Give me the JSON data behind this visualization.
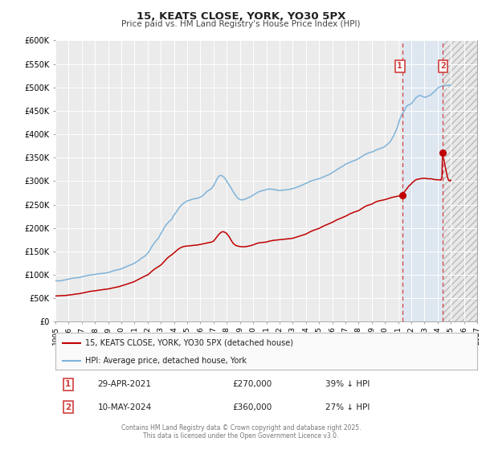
{
  "title": "15, KEATS CLOSE, YORK, YO30 5PX",
  "subtitle": "Price paid vs. HM Land Registry's House Price Index (HPI)",
  "ylim": [
    0,
    600000
  ],
  "xlim": [
    1995,
    2027
  ],
  "yticks": [
    0,
    50000,
    100000,
    150000,
    200000,
    250000,
    300000,
    350000,
    400000,
    450000,
    500000,
    550000,
    600000
  ],
  "ytick_labels": [
    "£0",
    "£50K",
    "£100K",
    "£150K",
    "£200K",
    "£250K",
    "£300K",
    "£350K",
    "£400K",
    "£450K",
    "£500K",
    "£550K",
    "£600K"
  ],
  "xticks": [
    1995,
    1996,
    1997,
    1998,
    1999,
    2000,
    2001,
    2002,
    2003,
    2004,
    2005,
    2006,
    2007,
    2008,
    2009,
    2010,
    2011,
    2012,
    2013,
    2014,
    2015,
    2016,
    2017,
    2018,
    2019,
    2020,
    2021,
    2022,
    2023,
    2024,
    2025,
    2026,
    2027
  ],
  "background_color": "#ffffff",
  "plot_bg_color": "#ebebeb",
  "grid_color": "#ffffff",
  "hpi_line_color": "#7fb3d9",
  "price_line_color": "#c00000",
  "shade_color": "#dce6f1",
  "shade_alpha": 0.85,
  "hatch_color": "#cccccc",
  "vline_color": "#d04040",
  "marker1_x": 2021.33,
  "marker1_y": 270000,
  "marker2_x": 2024.37,
  "marker2_y": 360000,
  "marker1_label": "29-APR-2021",
  "marker1_price": "£270,000",
  "marker1_hpi": "39% ↓ HPI",
  "marker2_label": "10-MAY-2024",
  "marker2_price": "£360,000",
  "marker2_hpi": "27% ↓ HPI",
  "legend_line1": "15, KEATS CLOSE, YORK, YO30 5PX (detached house)",
  "legend_line2": "HPI: Average price, detached house, York",
  "footer": "Contains HM Land Registry data © Crown copyright and database right 2025.\nThis data is licensed under the Open Government Licence v3.0.",
  "hpi_data": [
    [
      1995.0,
      88000
    ],
    [
      1995.08,
      87500
    ],
    [
      1995.17,
      87200
    ],
    [
      1995.25,
      87000
    ],
    [
      1995.33,
      87100
    ],
    [
      1995.42,
      87500
    ],
    [
      1995.5,
      88000
    ],
    [
      1995.58,
      88500
    ],
    [
      1995.67,
      89000
    ],
    [
      1995.75,
      89500
    ],
    [
      1995.83,
      90000
    ],
    [
      1995.92,
      90500
    ],
    [
      1996.0,
      91000
    ],
    [
      1996.17,
      92000
    ],
    [
      1996.33,
      93000
    ],
    [
      1996.5,
      93500
    ],
    [
      1996.67,
      94000
    ],
    [
      1996.83,
      94500
    ],
    [
      1997.0,
      96000
    ],
    [
      1997.17,
      97000
    ],
    [
      1997.33,
      98000
    ],
    [
      1997.5,
      99000
    ],
    [
      1997.67,
      100000
    ],
    [
      1997.83,
      100500
    ],
    [
      1998.0,
      101000
    ],
    [
      1998.17,
      102000
    ],
    [
      1998.33,
      102500
    ],
    [
      1998.5,
      103000
    ],
    [
      1998.67,
      103500
    ],
    [
      1998.83,
      104000
    ],
    [
      1999.0,
      105000
    ],
    [
      1999.17,
      106500
    ],
    [
      1999.33,
      108000
    ],
    [
      1999.5,
      109500
    ],
    [
      1999.67,
      110500
    ],
    [
      1999.83,
      111500
    ],
    [
      2000.0,
      113000
    ],
    [
      2000.17,
      115000
    ],
    [
      2000.33,
      117000
    ],
    [
      2000.5,
      119000
    ],
    [
      2000.67,
      121000
    ],
    [
      2000.83,
      122500
    ],
    [
      2001.0,
      125000
    ],
    [
      2001.17,
      128000
    ],
    [
      2001.33,
      131000
    ],
    [
      2001.5,
      135000
    ],
    [
      2001.67,
      138000
    ],
    [
      2001.83,
      141000
    ],
    [
      2002.0,
      146000
    ],
    [
      2002.17,
      153000
    ],
    [
      2002.33,
      161000
    ],
    [
      2002.5,
      168000
    ],
    [
      2002.67,
      174000
    ],
    [
      2002.83,
      179000
    ],
    [
      2003.0,
      188000
    ],
    [
      2003.17,
      196000
    ],
    [
      2003.33,
      204000
    ],
    [
      2003.5,
      210000
    ],
    [
      2003.67,
      215000
    ],
    [
      2003.83,
      219000
    ],
    [
      2004.0,
      228000
    ],
    [
      2004.17,
      234000
    ],
    [
      2004.33,
      241000
    ],
    [
      2004.5,
      247000
    ],
    [
      2004.67,
      252000
    ],
    [
      2004.83,
      255000
    ],
    [
      2005.0,
      258000
    ],
    [
      2005.17,
      259000
    ],
    [
      2005.33,
      261000
    ],
    [
      2005.5,
      262000
    ],
    [
      2005.67,
      263000
    ],
    [
      2005.83,
      264000
    ],
    [
      2006.0,
      266000
    ],
    [
      2006.17,
      269000
    ],
    [
      2006.33,
      273000
    ],
    [
      2006.5,
      278000
    ],
    [
      2006.67,
      281000
    ],
    [
      2006.83,
      284000
    ],
    [
      2007.0,
      290000
    ],
    [
      2007.08,
      295000
    ],
    [
      2007.17,
      299000
    ],
    [
      2007.25,
      304000
    ],
    [
      2007.33,
      308000
    ],
    [
      2007.42,
      311000
    ],
    [
      2007.5,
      312000
    ],
    [
      2007.58,
      312000
    ],
    [
      2007.67,
      311000
    ],
    [
      2007.75,
      309000
    ],
    [
      2007.83,
      307000
    ],
    [
      2007.92,
      304000
    ],
    [
      2008.0,
      300000
    ],
    [
      2008.08,
      296000
    ],
    [
      2008.17,
      292000
    ],
    [
      2008.25,
      289000
    ],
    [
      2008.33,
      285000
    ],
    [
      2008.42,
      281000
    ],
    [
      2008.5,
      277000
    ],
    [
      2008.58,
      273000
    ],
    [
      2008.67,
      270000
    ],
    [
      2008.75,
      267000
    ],
    [
      2008.83,
      264000
    ],
    [
      2008.92,
      262000
    ],
    [
      2009.0,
      261000
    ],
    [
      2009.08,
      260000
    ],
    [
      2009.17,
      260000
    ],
    [
      2009.25,
      260500
    ],
    [
      2009.33,
      261000
    ],
    [
      2009.42,
      262000
    ],
    [
      2009.5,
      263000
    ],
    [
      2009.67,
      265000
    ],
    [
      2009.83,
      267000
    ],
    [
      2010.0,
      270000
    ],
    [
      2010.17,
      273000
    ],
    [
      2010.33,
      276000
    ],
    [
      2010.5,
      278000
    ],
    [
      2010.67,
      279500
    ],
    [
      2010.83,
      280500
    ],
    [
      2011.0,
      282000
    ],
    [
      2011.17,
      283000
    ],
    [
      2011.33,
      283000
    ],
    [
      2011.5,
      282500
    ],
    [
      2011.67,
      281500
    ],
    [
      2011.83,
      281000
    ],
    [
      2012.0,
      280000
    ],
    [
      2012.17,
      280500
    ],
    [
      2012.33,
      281000
    ],
    [
      2012.5,
      281500
    ],
    [
      2012.67,
      282000
    ],
    [
      2012.83,
      283000
    ],
    [
      2013.0,
      284000
    ],
    [
      2013.17,
      285500
    ],
    [
      2013.33,
      287000
    ],
    [
      2013.5,
      289000
    ],
    [
      2013.67,
      291000
    ],
    [
      2013.83,
      293000
    ],
    [
      2014.0,
      295000
    ],
    [
      2014.17,
      297500
    ],
    [
      2014.33,
      299500
    ],
    [
      2014.5,
      301000
    ],
    [
      2014.67,
      302500
    ],
    [
      2014.83,
      304000
    ],
    [
      2015.0,
      305000
    ],
    [
      2015.17,
      307000
    ],
    [
      2015.33,
      309000
    ],
    [
      2015.5,
      311000
    ],
    [
      2015.67,
      313000
    ],
    [
      2015.83,
      315000
    ],
    [
      2016.0,
      318000
    ],
    [
      2016.17,
      321000
    ],
    [
      2016.33,
      324000
    ],
    [
      2016.5,
      327000
    ],
    [
      2016.67,
      330000
    ],
    [
      2016.83,
      332000
    ],
    [
      2017.0,
      336000
    ],
    [
      2017.17,
      338000
    ],
    [
      2017.33,
      340000
    ],
    [
      2017.5,
      342000
    ],
    [
      2017.67,
      344000
    ],
    [
      2017.83,
      345500
    ],
    [
      2018.0,
      348000
    ],
    [
      2018.17,
      351000
    ],
    [
      2018.33,
      354000
    ],
    [
      2018.5,
      357000
    ],
    [
      2018.67,
      359000
    ],
    [
      2018.83,
      361000
    ],
    [
      2019.0,
      362000
    ],
    [
      2019.17,
      364000
    ],
    [
      2019.33,
      366500
    ],
    [
      2019.5,
      368000
    ],
    [
      2019.67,
      370000
    ],
    [
      2019.83,
      371500
    ],
    [
      2020.0,
      374000
    ],
    [
      2020.08,
      376000
    ],
    [
      2020.17,
      378000
    ],
    [
      2020.25,
      380000
    ],
    [
      2020.33,
      382000
    ],
    [
      2020.42,
      385000
    ],
    [
      2020.5,
      389000
    ],
    [
      2020.58,
      393000
    ],
    [
      2020.67,
      397000
    ],
    [
      2020.75,
      402000
    ],
    [
      2020.83,
      407000
    ],
    [
      2020.92,
      413000
    ],
    [
      2021.0,
      420000
    ],
    [
      2021.08,
      428000
    ],
    [
      2021.17,
      435000
    ],
    [
      2021.25,
      440000
    ],
    [
      2021.33,
      444000
    ],
    [
      2021.42,
      448000
    ],
    [
      2021.5,
      452000
    ],
    [
      2021.58,
      457000
    ],
    [
      2021.67,
      460000
    ],
    [
      2021.75,
      462000
    ],
    [
      2021.83,
      463000
    ],
    [
      2021.92,
      464000
    ],
    [
      2022.0,
      465000
    ],
    [
      2022.08,
      468000
    ],
    [
      2022.17,
      471000
    ],
    [
      2022.25,
      474000
    ],
    [
      2022.33,
      477000
    ],
    [
      2022.42,
      479000
    ],
    [
      2022.5,
      481000
    ],
    [
      2022.58,
      482000
    ],
    [
      2022.67,
      483000
    ],
    [
      2022.75,
      482000
    ],
    [
      2022.83,
      481000
    ],
    [
      2022.92,
      480000
    ],
    [
      2023.0,
      479000
    ],
    [
      2023.08,
      479000
    ],
    [
      2023.17,
      480000
    ],
    [
      2023.25,
      481000
    ],
    [
      2023.33,
      482000
    ],
    [
      2023.42,
      483000
    ],
    [
      2023.5,
      485000
    ],
    [
      2023.58,
      487000
    ],
    [
      2023.67,
      489000
    ],
    [
      2023.75,
      491000
    ],
    [
      2023.83,
      493000
    ],
    [
      2023.92,
      496000
    ],
    [
      2024.0,
      498000
    ],
    [
      2024.08,
      500000
    ],
    [
      2024.17,
      501000
    ],
    [
      2024.25,
      502000
    ],
    [
      2024.33,
      502500
    ],
    [
      2024.37,
      503000
    ],
    [
      2024.5,
      503000
    ],
    [
      2024.58,
      503500
    ],
    [
      2024.67,
      504000
    ],
    [
      2024.75,
      504500
    ],
    [
      2024.83,
      504500
    ],
    [
      2024.92,
      504500
    ],
    [
      2025.0,
      505000
    ]
  ],
  "price_data": [
    [
      1995.0,
      55000
    ],
    [
      1995.17,
      55200
    ],
    [
      1995.33,
      55500
    ],
    [
      1995.5,
      55800
    ],
    [
      1995.67,
      56000
    ],
    [
      1995.83,
      56200
    ],
    [
      1996.0,
      57000
    ],
    [
      1996.17,
      57500
    ],
    [
      1996.33,
      58000
    ],
    [
      1996.5,
      59000
    ],
    [
      1996.67,
      59500
    ],
    [
      1996.83,
      60000
    ],
    [
      1997.0,
      61000
    ],
    [
      1997.17,
      62000
    ],
    [
      1997.33,
      63000
    ],
    [
      1997.5,
      64000
    ],
    [
      1997.67,
      65000
    ],
    [
      1997.83,
      65500
    ],
    [
      1998.0,
      66000
    ],
    [
      1998.17,
      66800
    ],
    [
      1998.33,
      67500
    ],
    [
      1998.5,
      68200
    ],
    [
      1998.67,
      68800
    ],
    [
      1998.83,
      69200
    ],
    [
      1999.0,
      70000
    ],
    [
      1999.17,
      71000
    ],
    [
      1999.33,
      72000
    ],
    [
      1999.5,
      73000
    ],
    [
      1999.67,
      74000
    ],
    [
      1999.83,
      75000
    ],
    [
      2000.0,
      76500
    ],
    [
      2000.17,
      78000
    ],
    [
      2000.33,
      79500
    ],
    [
      2000.5,
      81000
    ],
    [
      2000.67,
      82500
    ],
    [
      2000.83,
      84000
    ],
    [
      2001.0,
      86000
    ],
    [
      2001.17,
      88500
    ],
    [
      2001.33,
      91000
    ],
    [
      2001.5,
      93500
    ],
    [
      2001.67,
      96000
    ],
    [
      2001.83,
      98000
    ],
    [
      2002.0,
      100000
    ],
    [
      2002.17,
      104000
    ],
    [
      2002.33,
      108000
    ],
    [
      2002.5,
      112000
    ],
    [
      2002.67,
      115000
    ],
    [
      2002.83,
      118000
    ],
    [
      2003.0,
      121000
    ],
    [
      2003.17,
      126000
    ],
    [
      2003.33,
      131000
    ],
    [
      2003.5,
      136000
    ],
    [
      2003.67,
      140000
    ],
    [
      2003.83,
      143000
    ],
    [
      2004.0,
      147000
    ],
    [
      2004.17,
      151000
    ],
    [
      2004.33,
      155000
    ],
    [
      2004.5,
      158000
    ],
    [
      2004.67,
      160000
    ],
    [
      2004.83,
      161000
    ],
    [
      2005.0,
      161500
    ],
    [
      2005.17,
      162000
    ],
    [
      2005.33,
      162500
    ],
    [
      2005.5,
      163000
    ],
    [
      2005.67,
      163500
    ],
    [
      2005.83,
      164000
    ],
    [
      2006.0,
      165000
    ],
    [
      2006.17,
      166000
    ],
    [
      2006.33,
      167000
    ],
    [
      2006.5,
      168000
    ],
    [
      2006.67,
      169000
    ],
    [
      2006.83,
      170000
    ],
    [
      2007.0,
      172000
    ],
    [
      2007.08,
      175000
    ],
    [
      2007.17,
      178000
    ],
    [
      2007.25,
      181000
    ],
    [
      2007.33,
      184000
    ],
    [
      2007.42,
      187000
    ],
    [
      2007.5,
      189000
    ],
    [
      2007.58,
      191000
    ],
    [
      2007.67,
      192000
    ],
    [
      2007.75,
      192000
    ],
    [
      2007.83,
      191000
    ],
    [
      2007.92,
      190000
    ],
    [
      2008.0,
      188000
    ],
    [
      2008.08,
      185000
    ],
    [
      2008.17,
      182000
    ],
    [
      2008.25,
      178000
    ],
    [
      2008.33,
      174000
    ],
    [
      2008.42,
      170000
    ],
    [
      2008.5,
      167000
    ],
    [
      2008.58,
      165000
    ],
    [
      2008.67,
      163000
    ],
    [
      2008.75,
      162000
    ],
    [
      2008.83,
      161500
    ],
    [
      2008.92,
      161000
    ],
    [
      2009.0,
      160500
    ],
    [
      2009.17,
      160000
    ],
    [
      2009.33,
      160000
    ],
    [
      2009.5,
      160500
    ],
    [
      2009.67,
      161500
    ],
    [
      2009.83,
      162500
    ],
    [
      2010.0,
      164000
    ],
    [
      2010.17,
      166000
    ],
    [
      2010.33,
      167500
    ],
    [
      2010.5,
      168500
    ],
    [
      2010.67,
      169000
    ],
    [
      2010.83,
      169500
    ],
    [
      2011.0,
      170000
    ],
    [
      2011.17,
      171500
    ],
    [
      2011.33,
      172500
    ],
    [
      2011.5,
      173500
    ],
    [
      2011.67,
      174000
    ],
    [
      2011.83,
      174500
    ],
    [
      2012.0,
      175000
    ],
    [
      2012.17,
      175500
    ],
    [
      2012.33,
      176000
    ],
    [
      2012.5,
      176500
    ],
    [
      2012.67,
      177000
    ],
    [
      2012.83,
      177500
    ],
    [
      2013.0,
      178000
    ],
    [
      2013.17,
      179500
    ],
    [
      2013.33,
      181000
    ],
    [
      2013.5,
      182500
    ],
    [
      2013.67,
      184000
    ],
    [
      2013.83,
      185500
    ],
    [
      2014.0,
      187000
    ],
    [
      2014.17,
      189500
    ],
    [
      2014.33,
      192000
    ],
    [
      2014.5,
      194000
    ],
    [
      2014.67,
      196000
    ],
    [
      2014.83,
      197500
    ],
    [
      2015.0,
      199000
    ],
    [
      2015.17,
      201500
    ],
    [
      2015.33,
      204000
    ],
    [
      2015.5,
      206000
    ],
    [
      2015.67,
      208000
    ],
    [
      2015.83,
      210000
    ],
    [
      2016.0,
      212000
    ],
    [
      2016.17,
      214500
    ],
    [
      2016.33,
      217000
    ],
    [
      2016.5,
      219000
    ],
    [
      2016.67,
      221000
    ],
    [
      2016.83,
      223000
    ],
    [
      2017.0,
      225000
    ],
    [
      2017.17,
      227500
    ],
    [
      2017.33,
      230000
    ],
    [
      2017.5,
      232000
    ],
    [
      2017.67,
      234000
    ],
    [
      2017.83,
      235500
    ],
    [
      2018.0,
      237000
    ],
    [
      2018.17,
      240000
    ],
    [
      2018.33,
      243000
    ],
    [
      2018.5,
      246000
    ],
    [
      2018.67,
      248000
    ],
    [
      2018.83,
      249500
    ],
    [
      2019.0,
      251000
    ],
    [
      2019.17,
      253500
    ],
    [
      2019.33,
      256000
    ],
    [
      2019.5,
      257500
    ],
    [
      2019.67,
      258500
    ],
    [
      2019.83,
      259500
    ],
    [
      2020.0,
      260500
    ],
    [
      2020.17,
      262000
    ],
    [
      2020.33,
      263500
    ],
    [
      2020.5,
      265000
    ],
    [
      2020.67,
      266000
    ],
    [
      2020.83,
      267000
    ],
    [
      2021.0,
      268000
    ],
    [
      2021.17,
      268500
    ],
    [
      2021.25,
      269000
    ],
    [
      2021.33,
      270000
    ],
    [
      2021.42,
      274000
    ],
    [
      2021.5,
      278000
    ],
    [
      2021.58,
      281000
    ],
    [
      2021.67,
      284000
    ],
    [
      2021.75,
      287000
    ],
    [
      2021.83,
      290000
    ],
    [
      2021.92,
      292000
    ],
    [
      2022.0,
      294000
    ],
    [
      2022.08,
      297000
    ],
    [
      2022.17,
      299000
    ],
    [
      2022.25,
      301000
    ],
    [
      2022.33,
      302500
    ],
    [
      2022.42,
      303500
    ],
    [
      2022.5,
      304000
    ],
    [
      2022.58,
      304500
    ],
    [
      2022.67,
      305000
    ],
    [
      2022.75,
      305500
    ],
    [
      2022.83,
      306000
    ],
    [
      2022.92,
      306000
    ],
    [
      2023.0,
      306000
    ],
    [
      2023.08,
      306000
    ],
    [
      2023.17,
      305500
    ],
    [
      2023.25,
      305000
    ],
    [
      2023.33,
      305000
    ],
    [
      2023.42,
      305000
    ],
    [
      2023.5,
      305000
    ],
    [
      2023.58,
      304500
    ],
    [
      2023.67,
      304000
    ],
    [
      2023.75,
      303500
    ],
    [
      2023.83,
      303000
    ],
    [
      2023.92,
      303000
    ],
    [
      2024.0,
      303000
    ],
    [
      2024.17,
      302500
    ],
    [
      2024.25,
      302000
    ],
    [
      2024.33,
      310000
    ],
    [
      2024.37,
      360000
    ],
    [
      2024.42,
      352000
    ],
    [
      2024.5,
      342000
    ],
    [
      2024.58,
      330000
    ],
    [
      2024.67,
      318000
    ],
    [
      2024.75,
      308000
    ],
    [
      2024.83,
      302000
    ],
    [
      2024.92,
      300000
    ],
    [
      2025.0,
      302000
    ]
  ]
}
